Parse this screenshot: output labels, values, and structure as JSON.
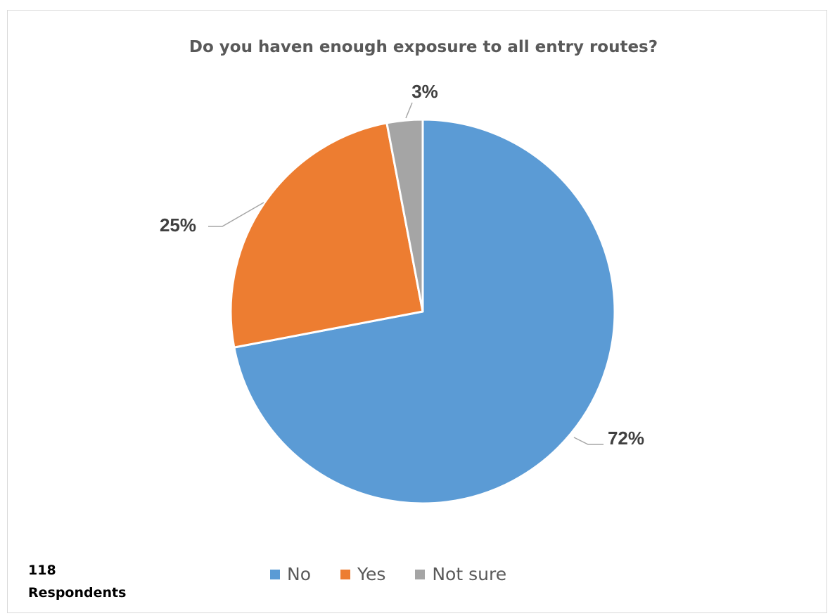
{
  "chart_data": {
    "type": "pie",
    "title": "Do you haven enough exposure to all entry routes?",
    "categories": [
      "No",
      "Yes",
      "Not sure"
    ],
    "values": [
      72,
      25,
      3
    ],
    "labels": [
      "72%",
      "25%",
      "3%"
    ],
    "colors": [
      "#5b9bd5",
      "#ed7d31",
      "#a5a5a5"
    ],
    "legend_position": "bottom",
    "start_angle_deg": 0,
    "direction": "clockwise"
  },
  "annotation": {
    "count": "118",
    "unit": "Respondents"
  }
}
